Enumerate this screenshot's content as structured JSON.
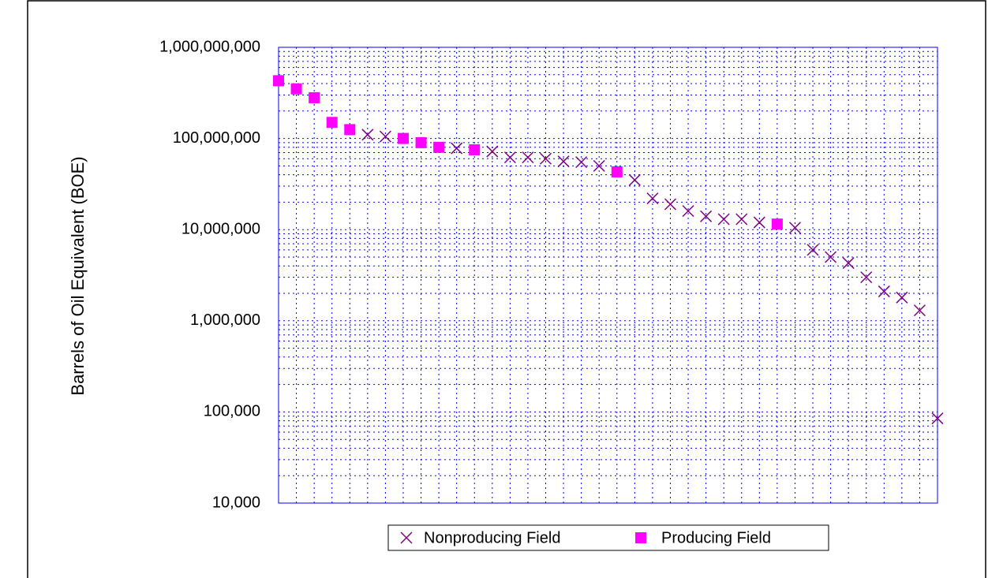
{
  "chart_data": {
    "type": "scatter",
    "y_label": "Barrels of Oil Equivalent (BOE)",
    "log_y": true,
    "grid": true,
    "minor_grid": true,
    "legend": "bottom",
    "xlim": [
      1,
      38
    ],
    "xticks": [
      1,
      2,
      3,
      4,
      5,
      6,
      7,
      8,
      9,
      10,
      11,
      12,
      13,
      14,
      15,
      16,
      17,
      18,
      19,
      20,
      21,
      22,
      23,
      24,
      25,
      26,
      27,
      28,
      29,
      30,
      31,
      32,
      33,
      34,
      35,
      36,
      37,
      38
    ],
    "ylim": [
      10000,
      1000000000
    ],
    "yticks": [
      {
        "value": 10000,
        "label": "10,000"
      },
      {
        "value": 100000,
        "label": "100,000"
      },
      {
        "value": 1000000,
        "label": "1,000,000"
      },
      {
        "value": 10000000,
        "label": "10,000,000"
      },
      {
        "value": 100000000,
        "label": "100,000,000"
      },
      {
        "value": 1000000000,
        "label": "1,000,000,000"
      }
    ],
    "series": [
      {
        "name": "Nonproducing Field",
        "color": "#800080",
        "marker": "x",
        "x": [
          6,
          7,
          11,
          13,
          14,
          15,
          16,
          17,
          18,
          19,
          21,
          22,
          23,
          24,
          25,
          26,
          27,
          28,
          30,
          31,
          32,
          33,
          34,
          35,
          36,
          37,
          38
        ],
        "values": [
          110000000,
          105000000,
          78000000,
          72000000,
          62000000,
          62000000,
          60000000,
          56000000,
          55000000,
          50000000,
          35000000,
          22000000,
          19000000,
          16000000,
          14000000,
          13000000,
          13000000,
          12000000,
          10500000,
          6000000,
          5000000,
          4300000,
          3000000,
          2100000,
          1800000,
          1300000,
          85000
        ]
      },
      {
        "name": "Producing Field",
        "color": "#ff00ff",
        "marker": "square",
        "x": [
          1,
          2,
          3,
          4,
          5,
          8,
          9,
          10,
          12,
          20,
          29
        ],
        "values": [
          430000000,
          350000000,
          280000000,
          150000000,
          125000000,
          100000000,
          90000000,
          80000000,
          75000000,
          43000000,
          11500000
        ]
      }
    ]
  }
}
